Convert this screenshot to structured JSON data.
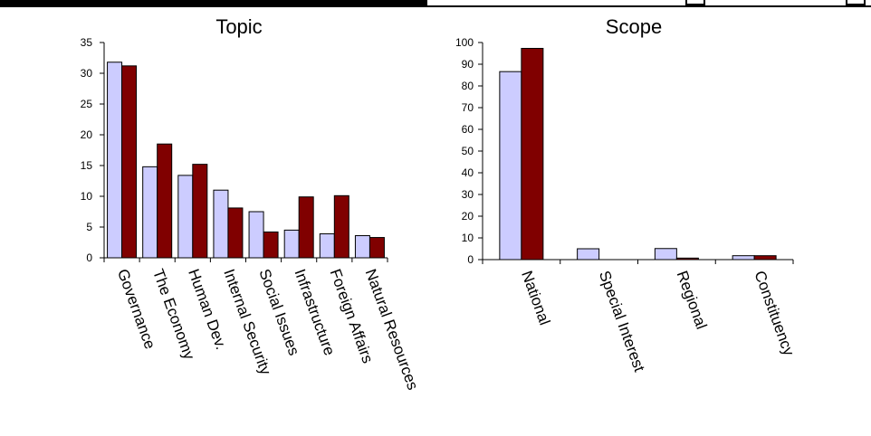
{
  "chart_data": [
    {
      "type": "bar",
      "title": "Topic",
      "categories": [
        "Governance",
        "The Economy",
        "Human Dev.",
        "Internal Security",
        "Social Issues",
        "Infrastructure",
        "Foreign Affairs",
        "Natural Resources"
      ],
      "series": [
        {
          "values": [
            31.8,
            14.8,
            13.4,
            11.0,
            7.5,
            4.5,
            3.9,
            3.6
          ]
        },
        {
          "values": [
            31.2,
            18.5,
            15.2,
            8.1,
            4.2,
            9.9,
            10.1,
            3.3
          ]
        }
      ],
      "ylim": [
        0,
        35
      ],
      "yticks": [
        0,
        5,
        10,
        15,
        20,
        25,
        30,
        35
      ],
      "grid": false,
      "xlabel": "",
      "ylabel": ""
    },
    {
      "type": "bar",
      "title": "Scope",
      "categories": [
        "National",
        "Special Interest",
        "Regional",
        "Constituency"
      ],
      "series": [
        {
          "values": [
            86.6,
            5.0,
            5.1,
            1.8
          ]
        },
        {
          "values": [
            97.3,
            0.0,
            0.7,
            1.8
          ]
        }
      ],
      "ylim": [
        0,
        100
      ],
      "yticks": [
        0,
        10,
        20,
        30,
        40,
        50,
        60,
        70,
        80,
        90,
        100
      ],
      "grid": false,
      "xlabel": "",
      "ylabel": ""
    }
  ],
  "colors": {
    "series1_fill": "#ccccff",
    "series2_fill": "#800000",
    "bar_stroke": "#000000"
  }
}
